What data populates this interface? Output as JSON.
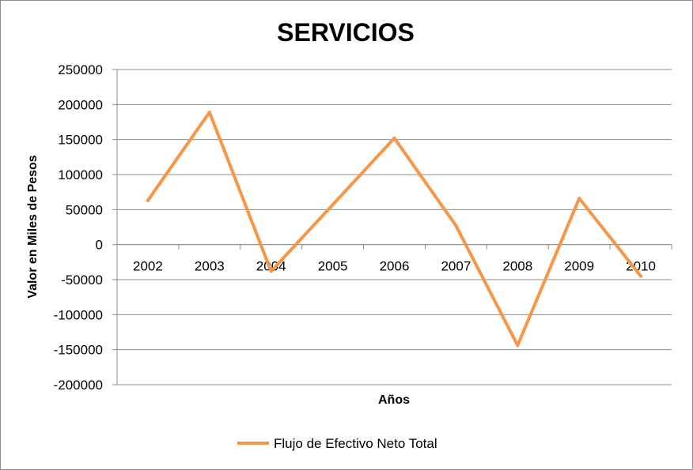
{
  "chart_data": {
    "type": "line",
    "title": "SERVICIOS",
    "xlabel": "Años",
    "ylabel": "Valor en Miles de Pesos",
    "categories": [
      "2002",
      "2003",
      "2004",
      "2005",
      "2006",
      "2007",
      "2008",
      "2009",
      "2010"
    ],
    "ylim": [
      -200000,
      250000
    ],
    "yticks": [
      250000,
      200000,
      150000,
      100000,
      50000,
      0,
      -50000,
      -100000,
      -150000,
      -200000
    ],
    "grid": true,
    "legend_position": "bottom",
    "series": [
      {
        "name": "Flujo de Efectivo Neto Total",
        "color": "#F79646",
        "values": [
          63000,
          189000,
          -38000,
          57000,
          152000,
          27000,
          -144000,
          66000,
          -45000
        ]
      }
    ]
  }
}
